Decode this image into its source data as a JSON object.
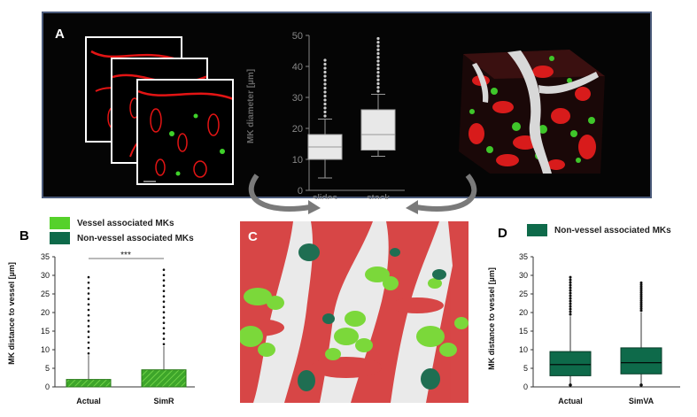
{
  "panels": {
    "A": {
      "label": "A",
      "boxplot": {
        "ylabel": "MK diameter [µm]",
        "yticks": [
          "0",
          "10",
          "20",
          "30",
          "40",
          "50"
        ],
        "categories": [
          "slides",
          "stack"
        ]
      }
    },
    "B": {
      "label": "B",
      "legend": [
        {
          "label": "Vessel associated MKs",
          "color": "#55d12a"
        },
        {
          "label": "Non-vessel associated MKs",
          "color": "#0e6a4a"
        }
      ],
      "ylabel": "MK distance to vessel [µm]",
      "yticks": [
        "0",
        "5",
        "10",
        "15",
        "20",
        "25",
        "30",
        "35"
      ],
      "categories": [
        "Actual",
        "SimR"
      ],
      "significance": "***"
    },
    "C": {
      "label": "C"
    },
    "D": {
      "label": "D",
      "legend": [
        {
          "label": "Non-vessel associated MKs",
          "color": "#0e6a4a"
        }
      ],
      "ylabel": "MK distance to vessel [µm]",
      "yticks": [
        "0",
        "5",
        "10",
        "15",
        "20",
        "25",
        "30",
        "35"
      ],
      "categories": [
        "Actual",
        "SimVA"
      ]
    }
  },
  "chart_data": [
    {
      "type": "box",
      "panel": "A",
      "ylabel": "MK diameter [µm]",
      "ylim": [
        0,
        50
      ],
      "categories": [
        "slides",
        "stack"
      ],
      "boxes": [
        {
          "name": "slides",
          "whisker_low": 4,
          "q1": 10,
          "median": 14,
          "q3": 18,
          "whisker_high": 23,
          "outlier_max": 42
        },
        {
          "name": "stack",
          "whisker_low": 11,
          "q1": 13,
          "median": 18,
          "q3": 26,
          "whisker_high": 31,
          "outlier_max": 49
        }
      ]
    },
    {
      "type": "bar",
      "panel": "B",
      "ylabel": "MK distance to vessel [µm]",
      "ylim": [
        0,
        35
      ],
      "categories": [
        "Actual",
        "SimR"
      ],
      "values": [
        2,
        4.6
      ],
      "whisker_high": [
        8.5,
        11
      ],
      "outlier_max": [
        29.5,
        31.5
      ],
      "significance": "***"
    },
    {
      "type": "box",
      "panel": "D",
      "ylabel": "MK distance to vessel [µm]",
      "ylim": [
        0,
        35
      ],
      "categories": [
        "Actual",
        "SimVA"
      ],
      "boxes": [
        {
          "name": "Actual",
          "whisker_low": 0.5,
          "q1": 3,
          "median": 6,
          "q3": 9.5,
          "whisker_high": 19,
          "outlier_max": 29.5
        },
        {
          "name": "SimVA",
          "whisker_low": 0.5,
          "q1": 3.5,
          "median": 6.5,
          "q3": 10.5,
          "whisker_high": 20,
          "outlier_max": 28
        }
      ]
    }
  ]
}
